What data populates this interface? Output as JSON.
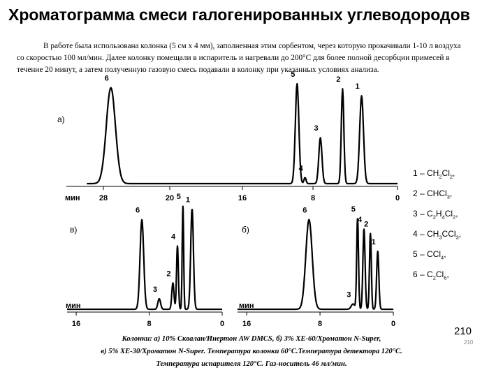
{
  "title": "Хроматограмма смеси галогенированных углеводородов",
  "intro": "В работе была использована колонка (5 см х 4 мм), заполненная этим сорбентом, через которую прокачивали 1-10 л воздуха со скоростью 100 мл/мин. Далее колонку помещали в испаритель и нагревали до 200°C для более полной десорбции примесей в течение 20 минут, а затем полученную газовую смесь подавали в колонку при указанных условиях анализа.",
  "legend": [
    {
      "num": "1",
      "parts": [
        [
          "CH",
          "2"
        ],
        [
          "Cl",
          "2"
        ]
      ],
      "end": ","
    },
    {
      "num": "2",
      "parts": [
        [
          "CHCl",
          "3"
        ]
      ],
      "end": ","
    },
    {
      "num": "3",
      "parts": [
        [
          "C",
          "2"
        ],
        [
          "H",
          "4"
        ],
        [
          "Cl",
          "2"
        ]
      ],
      "end": ","
    },
    {
      "num": "4",
      "parts": [
        [
          "CH",
          "3"
        ],
        [
          "CCl",
          "3"
        ]
      ],
      "end": ","
    },
    {
      "num": "5",
      "parts": [
        [
          "CCl",
          "4"
        ]
      ],
      "end": ","
    },
    {
      "num": "6",
      "parts": [
        [
          "C",
          "2"
        ],
        [
          "Cl",
          "6"
        ]
      ],
      "end": ","
    }
  ],
  "caption_lines": [
    "Колонки: а) 10% Сквалан/Инертон AW DMCS, б) 3% XE-60/Хроматон N-Super,",
    "в) 5% XE-30/Хроматон N-Super. Температура колонки 60°С.Температура детектора 120°С.",
    "Температура испарителя 120°С. Газ-носитель 46 мл/мин."
  ],
  "page_number": "210",
  "page_number_small": "210",
  "chart_data": [
    {
      "type": "line",
      "panel_label": "а)",
      "axis_unit": "мин",
      "xlim": [
        30,
        0
      ],
      "x_ticks": [
        {
          "v": 28,
          "label": "28"
        },
        {
          "v": 20,
          "label": "20"
        },
        {
          "v": 16,
          "label": "16"
        },
        {
          "v": 8,
          "label": "8"
        },
        {
          "v": 0,
          "label": "0"
        }
      ],
      "x_positions": [
        {
          "v": 28,
          "px": 148
        },
        {
          "v": 20,
          "px": 243
        },
        {
          "v": 16,
          "px": 347
        },
        {
          "v": 8,
          "px": 448
        },
        {
          "v": 0,
          "px": 569
        }
      ],
      "peaks": [
        {
          "label": "6",
          "x": 27.1,
          "height": 0.96,
          "width": 0.55
        },
        {
          "label": "5",
          "x": 9.8,
          "height": 1.0,
          "width": 0.2
        },
        {
          "label": "4",
          "x": 8.9,
          "height": 0.06,
          "width": 0.12
        },
        {
          "label": "3",
          "x": 7.3,
          "height": 0.46,
          "width": 0.15
        },
        {
          "label": "2",
          "x": 5.2,
          "height": 0.95,
          "width": 0.12
        },
        {
          "label": "1",
          "x": 3.4,
          "height": 0.88,
          "width": 0.18
        }
      ]
    },
    {
      "type": "line",
      "panel_label": "в)",
      "axis_unit": "мин",
      "xlim": [
        17,
        0
      ],
      "x_ticks": [
        {
          "v": 16,
          "label": "16"
        },
        {
          "v": 8,
          "label": "8"
        },
        {
          "v": 0,
          "label": "0"
        }
      ],
      "peaks": [
        {
          "label": "6",
          "x": 8.8,
          "height": 0.85,
          "width": 0.2
        },
        {
          "label": "3",
          "x": 6.9,
          "height": 0.1,
          "width": 0.15
        },
        {
          "label": "2",
          "x": 5.4,
          "height": 0.25,
          "width": 0.12
        },
        {
          "label": "4",
          "x": 4.9,
          "height": 0.6,
          "width": 0.1
        },
        {
          "label": "5",
          "x": 4.3,
          "height": 0.98,
          "width": 0.08
        },
        {
          "label": "1",
          "x": 3.3,
          "height": 0.95,
          "width": 0.15
        }
      ]
    },
    {
      "type": "line",
      "panel_label": "б)",
      "axis_unit": "мин",
      "xlim": [
        17,
        0
      ],
      "x_ticks": [
        {
          "v": 16,
          "label": "16"
        },
        {
          "v": 8,
          "label": "8"
        },
        {
          "v": 0,
          "label": "0"
        }
      ],
      "peaks": [
        {
          "label": "6",
          "x": 9.2,
          "height": 0.85,
          "width": 0.35
        },
        {
          "label": "3",
          "x": 4.4,
          "height": 0.05,
          "width": 0.2
        },
        {
          "label": "5",
          "x": 3.9,
          "height": 0.86,
          "width": 0.1
        },
        {
          "label": "4",
          "x": 3.2,
          "height": 0.76,
          "width": 0.12
        },
        {
          "label": "2",
          "x": 2.5,
          "height": 0.72,
          "width": 0.1
        },
        {
          "label": "1",
          "x": 1.7,
          "height": 0.55,
          "width": 0.12
        }
      ]
    }
  ]
}
